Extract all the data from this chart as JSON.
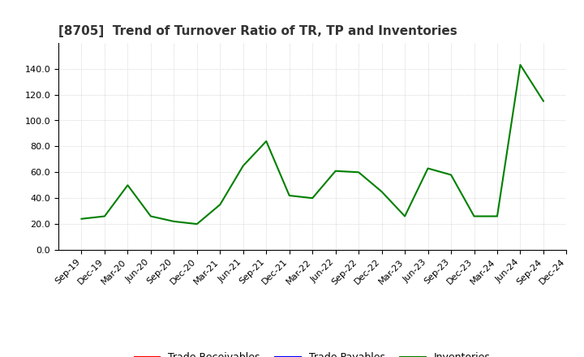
{
  "title": "[8705]  Trend of Turnover Ratio of TR, TP and Inventories",
  "x_labels": [
    "Sep-19",
    "Dec-19",
    "Mar-20",
    "Jun-20",
    "Sep-20",
    "Dec-20",
    "Mar-21",
    "Jun-21",
    "Sep-21",
    "Dec-21",
    "Mar-22",
    "Jun-22",
    "Sep-22",
    "Dec-22",
    "Mar-23",
    "Jun-23",
    "Sep-23",
    "Dec-23",
    "Mar-24",
    "Jun-24",
    "Sep-24",
    "Dec-24"
  ],
  "trade_receivables": [
    null,
    null,
    null,
    null,
    null,
    null,
    null,
    null,
    null,
    null,
    null,
    null,
    null,
    null,
    null,
    null,
    null,
    null,
    null,
    null,
    null,
    null
  ],
  "trade_payables": [
    null,
    null,
    null,
    null,
    null,
    null,
    null,
    null,
    null,
    null,
    null,
    null,
    null,
    null,
    null,
    null,
    null,
    null,
    null,
    null,
    null,
    null
  ],
  "inventories": [
    24.0,
    26.0,
    50.0,
    26.0,
    22.0,
    20.0,
    35.0,
    65.0,
    84.0,
    42.0,
    40.0,
    61.0,
    60.0,
    45.0,
    26.0,
    63.0,
    58.0,
    26.0,
    26.0,
    143.0,
    115.0,
    null
  ],
  "ylim": [
    0.0,
    160.0
  ],
  "yticks": [
    0.0,
    20.0,
    40.0,
    60.0,
    80.0,
    100.0,
    120.0,
    140.0
  ],
  "line_colors": {
    "trade_receivables": "#ff0000",
    "trade_payables": "#0000ff",
    "inventories": "#008000"
  },
  "legend_labels": [
    "Trade Receivables",
    "Trade Payables",
    "Inventories"
  ],
  "background_color": "#ffffff",
  "grid_color": "#aaaaaa",
  "title_fontsize": 11,
  "tick_fontsize": 8,
  "legend_fontsize": 9
}
